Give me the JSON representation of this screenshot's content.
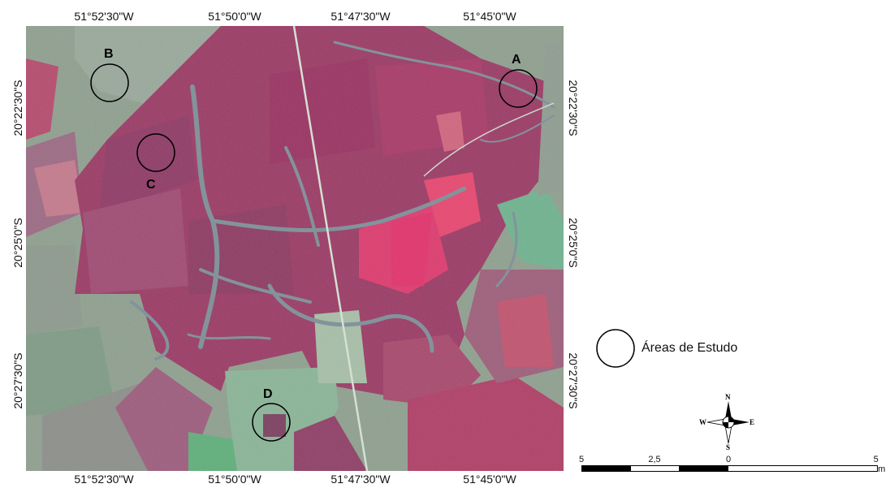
{
  "axes": {
    "top": [
      "51°52'30\"W",
      "51°50'0\"W",
      "51°47'30\"W",
      "51°45'0\"W"
    ],
    "bottom": [
      "51°52'30\"W",
      "51°50'0\"W",
      "51°47'30\"W",
      "51°45'0\"W"
    ],
    "left": [
      "20°22'30\"S",
      "20°25'0\"S",
      "20°27'30\"S"
    ],
    "right": [
      "20°22'30\"S",
      "20°25'0\"S",
      "20°27'30\"S"
    ]
  },
  "areas": [
    {
      "letter": "A"
    },
    {
      "letter": "B"
    },
    {
      "letter": "C"
    },
    {
      "letter": "D"
    }
  ],
  "legend": {
    "label": "Áreas de Estudo"
  },
  "compass": {
    "n": "N",
    "s": "S",
    "e": "E",
    "w": "W"
  },
  "scale": {
    "labels": [
      "5",
      "2,5",
      "0",
      "5 km"
    ]
  },
  "colors": {
    "crop": "#9c3a64",
    "bright_crop": "#e0356b",
    "pasture": "#86a68c",
    "river": "#7b8c96"
  }
}
